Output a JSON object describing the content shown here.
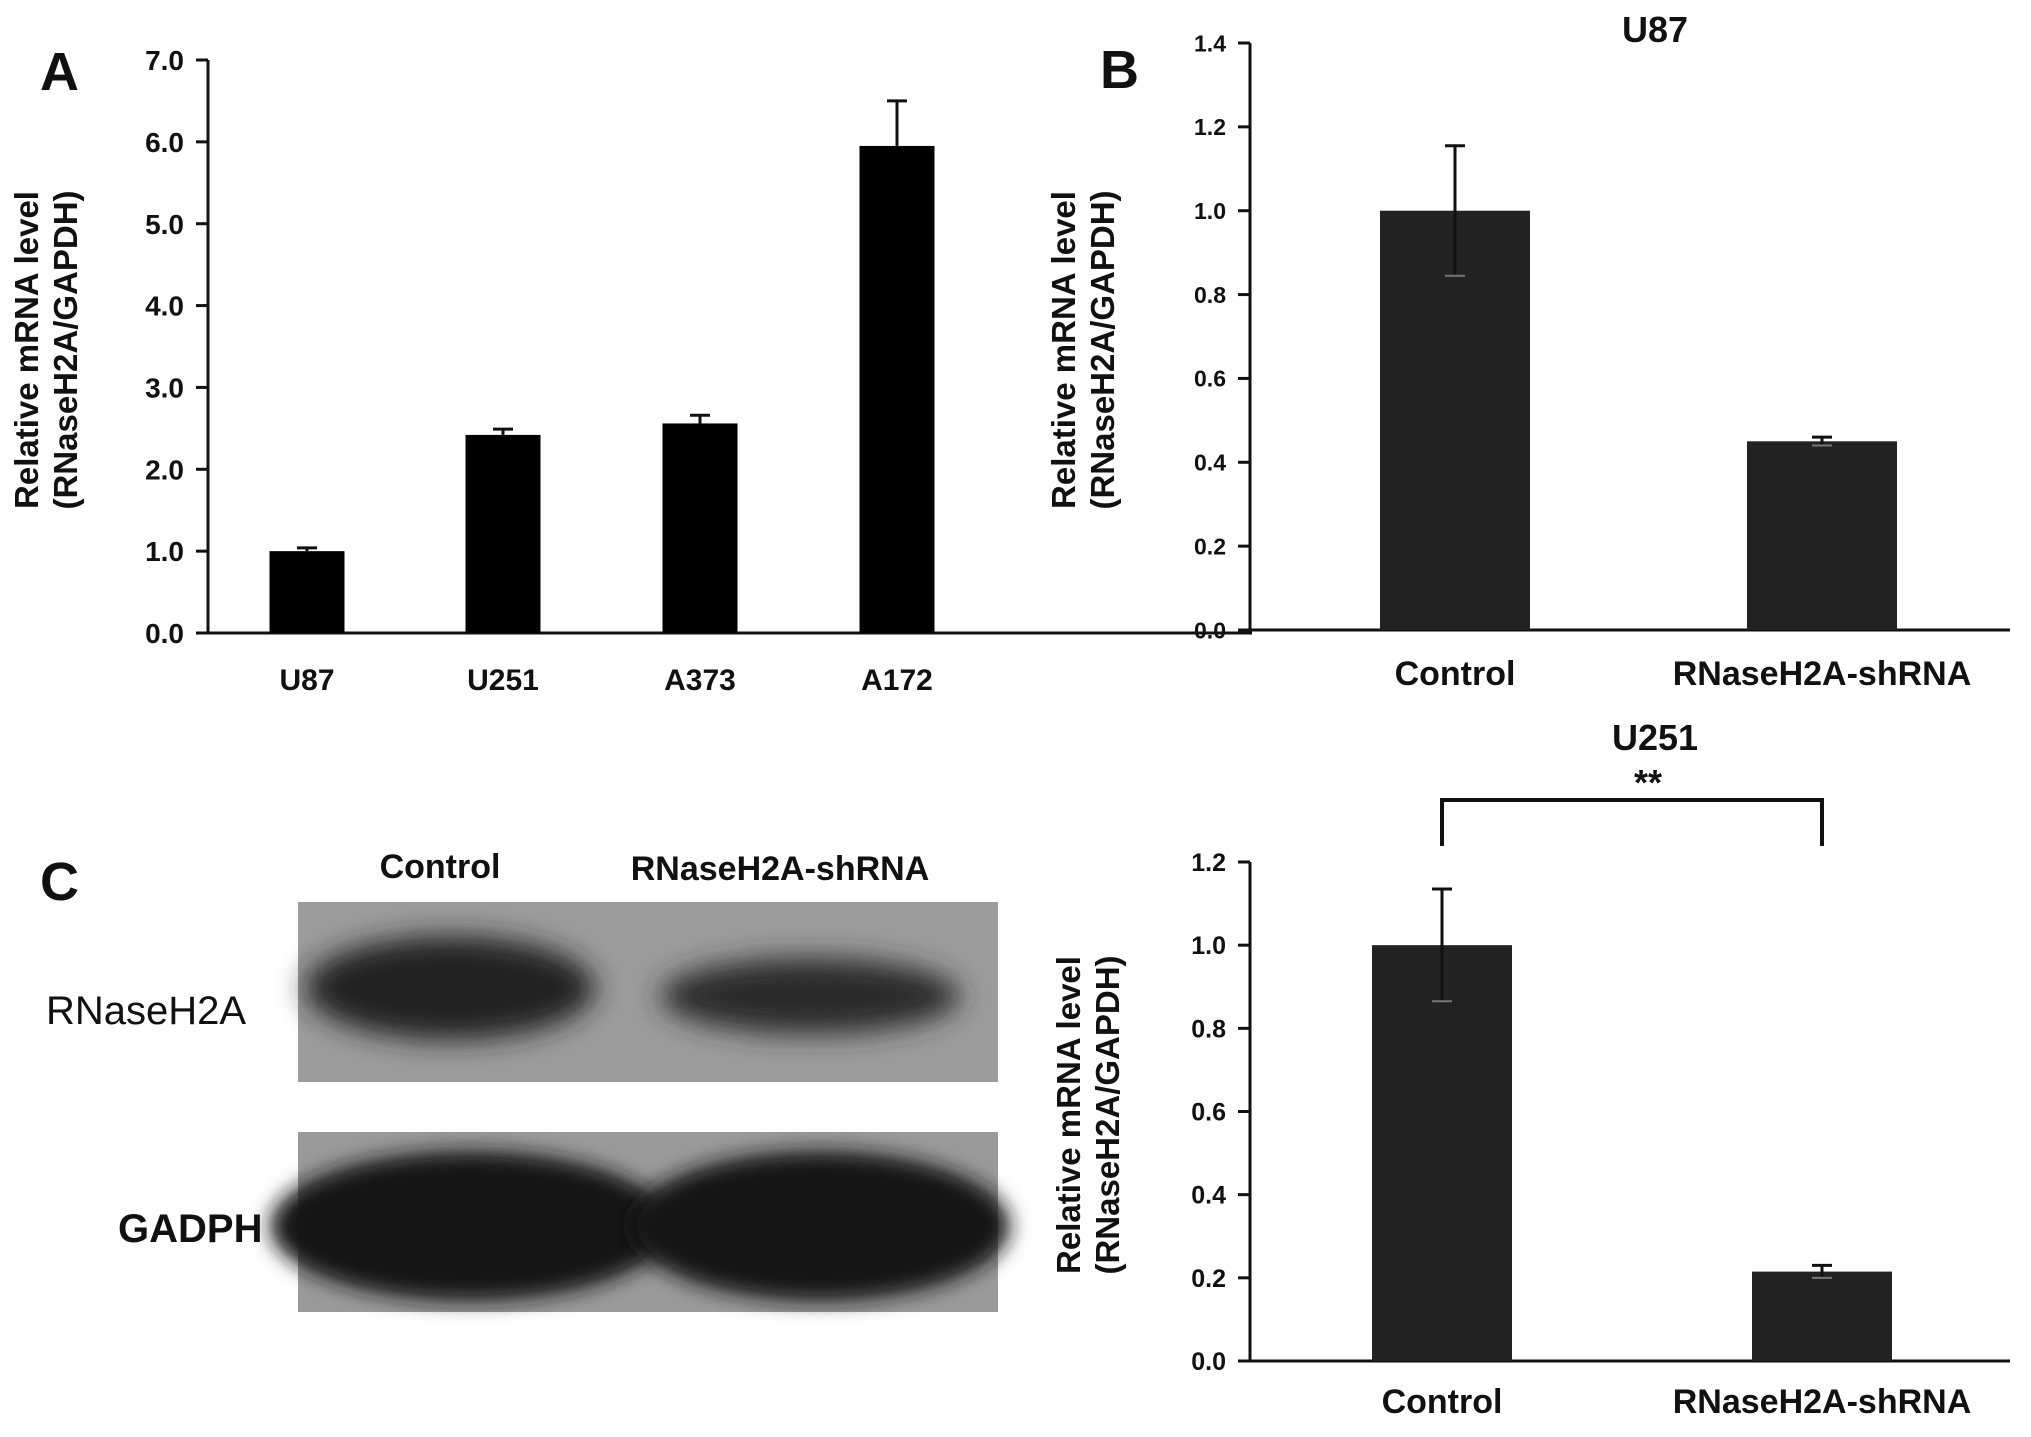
{
  "panels": {
    "a": {
      "letter": "A"
    },
    "b": {
      "letter": "B"
    },
    "c": {
      "letter": "C"
    }
  },
  "western_blot": {
    "lane_labels": [
      "Control",
      "RNaseH2A-shRNA"
    ],
    "row_labels": [
      "RNaseH2A",
      "GADPH"
    ]
  },
  "chart_data": [
    {
      "id": "A",
      "type": "bar",
      "title": "",
      "categories": [
        "U87",
        "U251",
        "A373",
        "A172"
      ],
      "values": [
        1.0,
        2.42,
        2.56,
        5.95
      ],
      "errors": [
        0.04,
        0.07,
        0.1,
        0.55
      ],
      "ylim": [
        0,
        7
      ],
      "yticks": [
        "0.0",
        "1.0",
        "2.0",
        "3.0",
        "4.0",
        "5.0",
        "6.0",
        "7.0"
      ],
      "ylabel": [
        "Relative mRNA level",
        "(RNaseH2A/GAPDH)"
      ],
      "xlabel": "",
      "bar_color": "#000000",
      "grid": false,
      "legend": "none"
    },
    {
      "id": "B-U87",
      "type": "bar",
      "title": "U87",
      "categories": [
        "Control",
        "RNaseH2A-shRNA"
      ],
      "values": [
        1.0,
        0.45
      ],
      "errors": [
        0.155,
        0.01
      ],
      "ylim": [
        0,
        1.4
      ],
      "yticks": [
        "0.0",
        "0.2",
        "0.4",
        "0.6",
        "0.8",
        "1.0",
        "1.2",
        "1.4"
      ],
      "ylabel": [
        "Relative mRNA level",
        "(RNaseH2A/GAPDH)"
      ],
      "xlabel": "",
      "bar_color": "#222222",
      "grid": false,
      "legend": "none"
    },
    {
      "id": "B-U251",
      "type": "bar",
      "title": "U251",
      "categories": [
        "Control",
        "RNaseH2A-shRNA"
      ],
      "values": [
        1.0,
        0.215
      ],
      "errors": [
        0.135,
        0.015
      ],
      "ylim": [
        0,
        1.2
      ],
      "yticks": [
        "0.0",
        "0.2",
        "0.4",
        "0.6",
        "0.8",
        "1.0",
        "1.2"
      ],
      "ylabel": [
        "Relative mRNA level",
        "(RNaseH2A/GAPDH)"
      ],
      "xlabel": "",
      "bar_color": "#222222",
      "significance": "**",
      "grid": false,
      "legend": "none"
    }
  ]
}
